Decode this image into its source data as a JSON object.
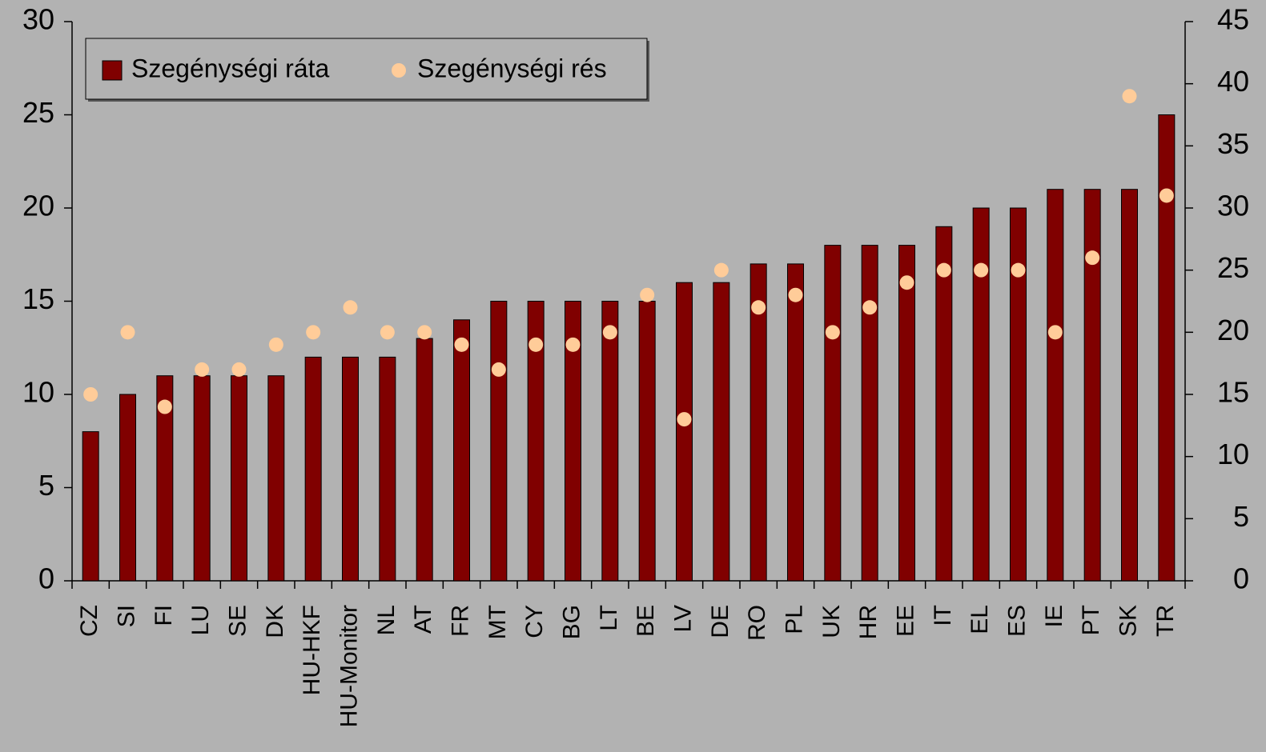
{
  "chart_data": {
    "type": "bar",
    "categories": [
      "CZ",
      "SI",
      "FI",
      "LU",
      "SE",
      "DK",
      "HU-HKF",
      "HU-Monitor",
      "NL",
      "AT",
      "FR",
      "MT",
      "CY",
      "BG",
      "LT",
      "BE",
      "LV",
      "DE",
      "RO",
      "PL",
      "UK",
      "HR",
      "EE",
      "IT",
      "EL",
      "ES",
      "IE",
      "PT",
      "SK",
      "TR"
    ],
    "series": [
      {
        "name": "Szegénységi ráta",
        "color": "#800000",
        "type": "bar",
        "values": [
          8,
          10,
          11,
          11,
          11,
          11,
          12,
          12,
          12,
          13,
          14,
          15,
          15,
          15,
          15,
          15,
          16,
          16,
          17,
          17,
          18,
          18,
          18,
          19,
          20,
          20,
          21,
          21,
          21,
          25
        ]
      },
      {
        "name": "Szegénységi rés",
        "color": "#ffcc99",
        "type": "scatter",
        "axis": "y2",
        "values": [
          15,
          20,
          14,
          17,
          17,
          19,
          20,
          22,
          20,
          20,
          19,
          17,
          19,
          19,
          20,
          23,
          13,
          25,
          22,
          23,
          20,
          22,
          24,
          25,
          25,
          25,
          20,
          26,
          39,
          31
        ]
      }
    ],
    "ylim": [
      0,
      30
    ],
    "yticks": [
      0,
      5,
      10,
      15,
      20,
      25,
      30
    ],
    "y2lim": [
      0,
      45
    ],
    "y2ticks": [
      0,
      5,
      10,
      15,
      20,
      25,
      30,
      35,
      40,
      45
    ],
    "legend": "top-left"
  }
}
